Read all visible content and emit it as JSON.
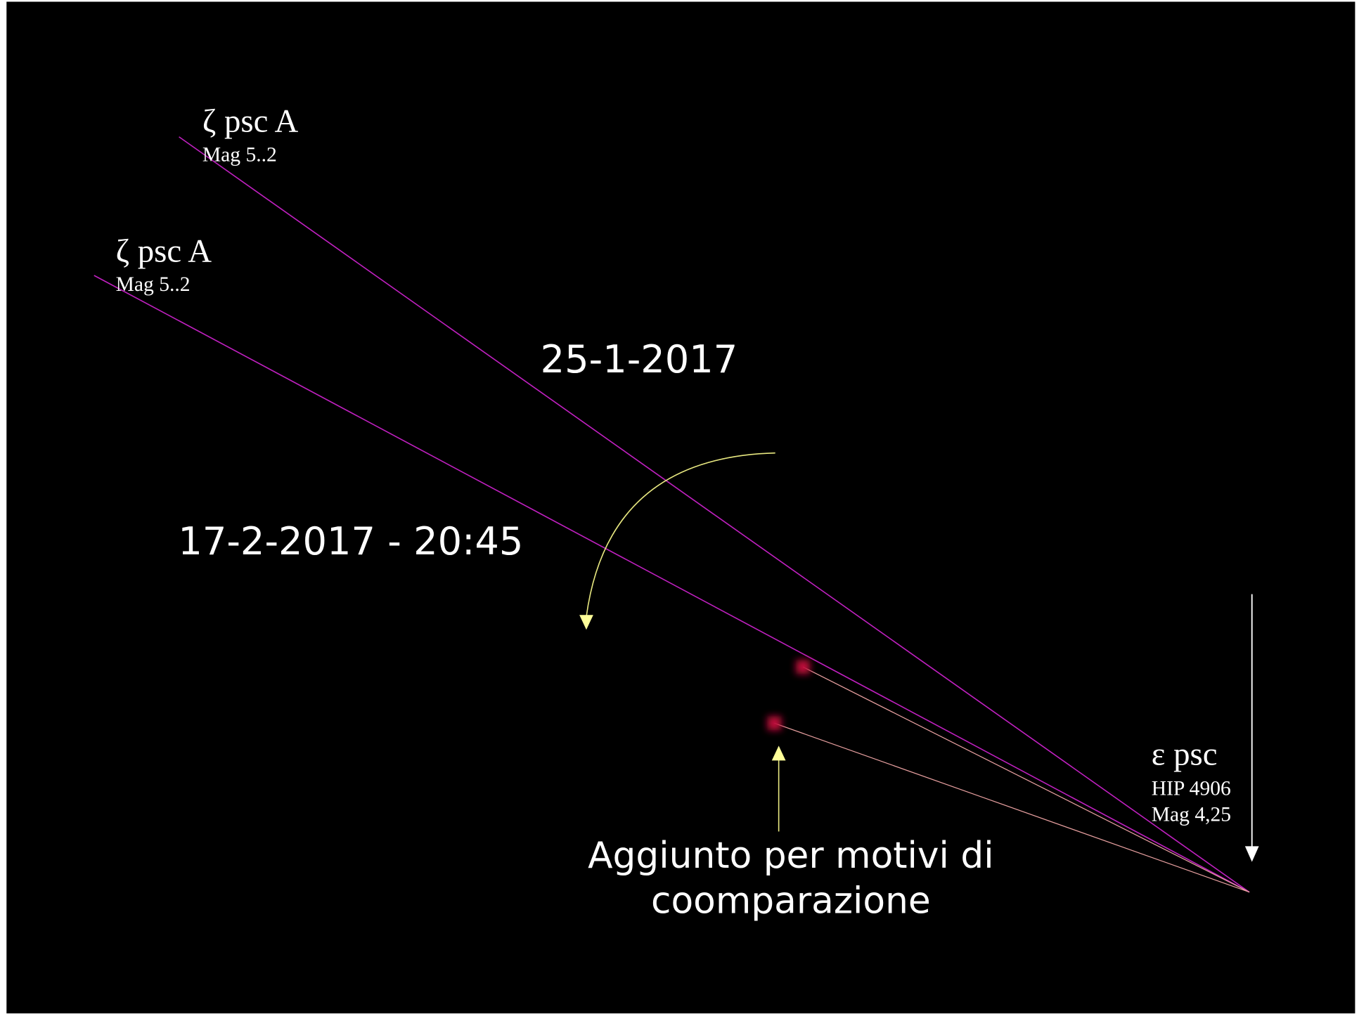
{
  "stars": [
    {
      "name": "ζ psc A",
      "details": [
        "Mag 5..2"
      ]
    },
    {
      "name": "ζ psc A",
      "details": [
        "Mag 5..2"
      ]
    },
    {
      "name": "ε psc",
      "details": [
        "HIP 4906",
        "Mag 4,25"
      ]
    }
  ],
  "dates": [
    "25-1-2017",
    "17-2-2017 - 20:45"
  ],
  "note": [
    "Aggiunto per motivi di",
    "coomparazione"
  ]
}
